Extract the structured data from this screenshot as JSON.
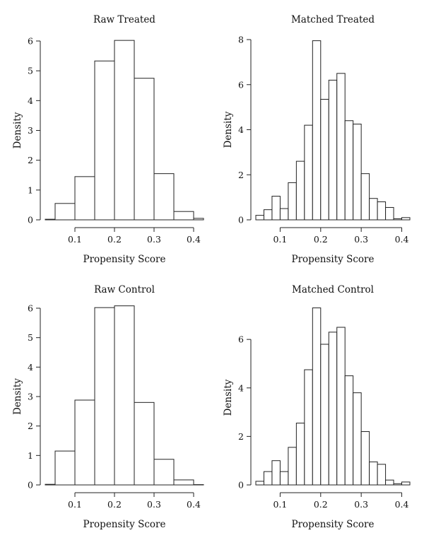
{
  "chart_data": [
    {
      "type": "bar",
      "title": "Raw Treated",
      "xlabel": "Propensity Score",
      "ylabel": "Density",
      "xlim": [
        0.025,
        0.425
      ],
      "ylim": [
        0,
        6
      ],
      "xticks": [
        "0.1",
        "0.2",
        "0.3",
        "0.4"
      ],
      "yticks": [
        "0",
        "1",
        "2",
        "3",
        "4",
        "5",
        "6"
      ],
      "bins": [
        {
          "x0": 0.0,
          "x1": 0.05,
          "value": 0.02
        },
        {
          "x0": 0.05,
          "x1": 0.1,
          "value": 0.55
        },
        {
          "x0": 0.1,
          "x1": 0.15,
          "value": 1.45
        },
        {
          "x0": 0.15,
          "x1": 0.2,
          "value": 5.33
        },
        {
          "x0": 0.2,
          "x1": 0.25,
          "value": 6.02
        },
        {
          "x0": 0.25,
          "x1": 0.3,
          "value": 4.75
        },
        {
          "x0": 0.3,
          "x1": 0.35,
          "value": 1.55
        },
        {
          "x0": 0.35,
          "x1": 0.4,
          "value": 0.28
        },
        {
          "x0": 0.4,
          "x1": 0.45,
          "value": 0.05
        }
      ]
    },
    {
      "type": "bar",
      "title": "Matched Treated",
      "xlabel": "Propensity Score",
      "ylabel": "Density",
      "xlim": [
        0.04,
        0.42
      ],
      "ylim": [
        0,
        8
      ],
      "xticks": [
        "0.1",
        "0.2",
        "0.3",
        "0.4"
      ],
      "yticks": [
        "0",
        "2",
        "4",
        "6",
        "8"
      ],
      "bins": [
        {
          "x0": 0.04,
          "x1": 0.06,
          "value": 0.2
        },
        {
          "x0": 0.06,
          "x1": 0.08,
          "value": 0.45
        },
        {
          "x0": 0.08,
          "x1": 0.1,
          "value": 1.05
        },
        {
          "x0": 0.1,
          "x1": 0.12,
          "value": 0.5
        },
        {
          "x0": 0.12,
          "x1": 0.14,
          "value": 1.65
        },
        {
          "x0": 0.14,
          "x1": 0.16,
          "value": 2.6
        },
        {
          "x0": 0.16,
          "x1": 0.18,
          "value": 4.2
        },
        {
          "x0": 0.18,
          "x1": 0.2,
          "value": 7.95
        },
        {
          "x0": 0.2,
          "x1": 0.22,
          "value": 5.35
        },
        {
          "x0": 0.22,
          "x1": 0.24,
          "value": 6.2
        },
        {
          "x0": 0.24,
          "x1": 0.26,
          "value": 6.5
        },
        {
          "x0": 0.26,
          "x1": 0.28,
          "value": 4.4
        },
        {
          "x0": 0.28,
          "x1": 0.3,
          "value": 4.25
        },
        {
          "x0": 0.3,
          "x1": 0.32,
          "value": 2.05
        },
        {
          "x0": 0.32,
          "x1": 0.34,
          "value": 0.95
        },
        {
          "x0": 0.34,
          "x1": 0.36,
          "value": 0.8
        },
        {
          "x0": 0.36,
          "x1": 0.38,
          "value": 0.55
        },
        {
          "x0": 0.38,
          "x1": 0.4,
          "value": 0.05
        },
        {
          "x0": 0.4,
          "x1": 0.42,
          "value": 0.1
        }
      ]
    },
    {
      "type": "bar",
      "title": "Raw Control",
      "xlabel": "Propensity Score",
      "ylabel": "Density",
      "xlim": [
        0.025,
        0.425
      ],
      "ylim": [
        0,
        6
      ],
      "xticks": [
        "0.1",
        "0.2",
        "0.3",
        "0.4"
      ],
      "yticks": [
        "0",
        "1",
        "2",
        "3",
        "4",
        "5",
        "6"
      ],
      "bins": [
        {
          "x0": 0.0,
          "x1": 0.05,
          "value": 0.02
        },
        {
          "x0": 0.05,
          "x1": 0.1,
          "value": 1.15
        },
        {
          "x0": 0.1,
          "x1": 0.15,
          "value": 2.88
        },
        {
          "x0": 0.15,
          "x1": 0.2,
          "value": 6.02
        },
        {
          "x0": 0.2,
          "x1": 0.25,
          "value": 6.08
        },
        {
          "x0": 0.25,
          "x1": 0.3,
          "value": 2.8
        },
        {
          "x0": 0.3,
          "x1": 0.35,
          "value": 0.87
        },
        {
          "x0": 0.35,
          "x1": 0.4,
          "value": 0.17
        },
        {
          "x0": 0.4,
          "x1": 0.45,
          "value": 0.01
        }
      ]
    },
    {
      "type": "bar",
      "title": "Matched Control",
      "xlabel": "Propensity Score",
      "ylabel": "Density",
      "xlim": [
        0.04,
        0.42
      ],
      "ylim": [
        0,
        7.2
      ],
      "xticks": [
        "0.1",
        "0.2",
        "0.3",
        "0.4"
      ],
      "yticks": [
        "0",
        "2",
        "4",
        "6"
      ],
      "bins": [
        {
          "x0": 0.04,
          "x1": 0.06,
          "value": 0.15
        },
        {
          "x0": 0.06,
          "x1": 0.08,
          "value": 0.55
        },
        {
          "x0": 0.08,
          "x1": 0.1,
          "value": 1.0
        },
        {
          "x0": 0.1,
          "x1": 0.12,
          "value": 0.55
        },
        {
          "x0": 0.12,
          "x1": 0.14,
          "value": 1.55
        },
        {
          "x0": 0.14,
          "x1": 0.16,
          "value": 2.55
        },
        {
          "x0": 0.16,
          "x1": 0.18,
          "value": 4.75
        },
        {
          "x0": 0.18,
          "x1": 0.2,
          "value": 7.3
        },
        {
          "x0": 0.2,
          "x1": 0.22,
          "value": 5.8
        },
        {
          "x0": 0.22,
          "x1": 0.24,
          "value": 6.3
        },
        {
          "x0": 0.24,
          "x1": 0.26,
          "value": 6.5
        },
        {
          "x0": 0.26,
          "x1": 0.28,
          "value": 4.5
        },
        {
          "x0": 0.28,
          "x1": 0.3,
          "value": 3.8
        },
        {
          "x0": 0.3,
          "x1": 0.32,
          "value": 2.2
        },
        {
          "x0": 0.32,
          "x1": 0.34,
          "value": 0.95
        },
        {
          "x0": 0.34,
          "x1": 0.36,
          "value": 0.85
        },
        {
          "x0": 0.36,
          "x1": 0.38,
          "value": 0.2
        },
        {
          "x0": 0.38,
          "x1": 0.4,
          "value": 0.05
        },
        {
          "x0": 0.4,
          "x1": 0.42,
          "value": 0.12
        }
      ]
    }
  ]
}
